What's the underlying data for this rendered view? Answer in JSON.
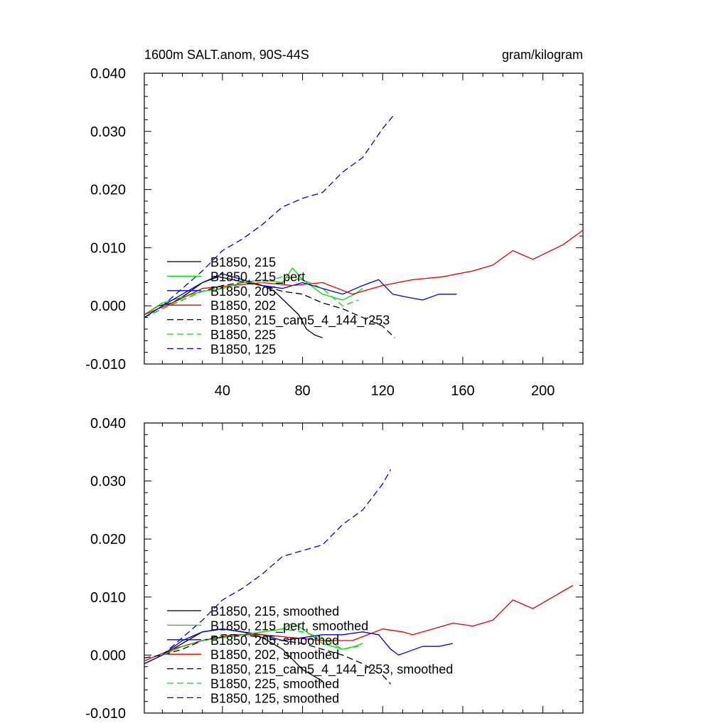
{
  "colors": {
    "black": "#000000",
    "green": "#00e000",
    "blue": "#0000e0",
    "red": "#e00000"
  },
  "chart_data": [
    {
      "type": "line",
      "title": "1600m SALT.anom, 90S-44S",
      "units": "gram/kilogram",
      "xlim": [
        1,
        220
      ],
      "ylim": [
        -0.01,
        0.04
      ],
      "xticks": [
        40,
        80,
        120,
        160,
        200
      ],
      "xticklabels": [
        "40",
        "80",
        "120",
        "160",
        "200"
      ],
      "yticks": [
        -0.01,
        0.0,
        0.01,
        0.02,
        0.03,
        0.04
      ],
      "yticklabels": [
        "-0.010",
        "0.000",
        "0.010",
        "0.020",
        "0.030",
        "0.040"
      ],
      "series": [
        {
          "name": "B1850, 215",
          "color": "black",
          "dash": false,
          "x": [
            1,
            8,
            15,
            22,
            30,
            38,
            45,
            52,
            60,
            66,
            72,
            78,
            82,
            86,
            90
          ],
          "y": [
            -0.0015,
            0.0,
            0.0005,
            0.002,
            0.004,
            0.005,
            0.0045,
            0.004,
            0.0035,
            0.0025,
            0.0005,
            -0.0015,
            -0.004,
            -0.005,
            -0.0055
          ]
        },
        {
          "name": "B1850, 215_pert",
          "color": "green",
          "dash": false,
          "x": [
            1,
            10,
            20,
            30,
            40,
            50,
            60,
            70,
            75,
            80,
            90,
            100,
            106,
            110
          ],
          "y": [
            -0.0015,
            0.0005,
            0.0015,
            0.0025,
            0.003,
            0.004,
            0.0045,
            0.004,
            0.0065,
            0.0045,
            0.002,
            0.001,
            0.002,
            0.003
          ]
        },
        {
          "name": "B1850, 205",
          "color": "blue",
          "dash": false,
          "x": [
            1,
            10,
            20,
            30,
            40,
            50,
            60,
            70,
            80,
            90,
            100,
            110,
            118,
            125,
            132,
            140,
            148,
            157
          ],
          "y": [
            -0.002,
            0.0,
            0.002,
            0.004,
            0.0055,
            0.0045,
            0.0035,
            0.003,
            0.004,
            0.003,
            0.002,
            0.0035,
            0.0045,
            0.002,
            0.0015,
            0.001,
            0.002,
            0.002
          ]
        },
        {
          "name": "B1850, 202",
          "color": "red",
          "dash": false,
          "x": [
            1,
            15,
            30,
            45,
            60,
            75,
            90,
            105,
            120,
            135,
            150,
            165,
            175,
            185,
            195,
            210,
            220
          ],
          "y": [
            -0.0015,
            0.0005,
            0.003,
            0.0035,
            0.004,
            0.0035,
            0.004,
            0.002,
            0.0035,
            0.0045,
            0.005,
            0.006,
            0.007,
            0.0095,
            0.008,
            0.0105,
            0.013
          ]
        },
        {
          "name": "B1850, 215_cam5_4_144_r253",
          "color": "black",
          "dash": true,
          "x": [
            1,
            10,
            20,
            30,
            40,
            50,
            60,
            70,
            80,
            90,
            100,
            110,
            120,
            126
          ],
          "y": [
            -0.002,
            -0.0005,
            0.001,
            0.0025,
            0.0035,
            0.004,
            0.0035,
            0.0025,
            0.002,
            0.0005,
            -0.0005,
            -0.002,
            -0.0035,
            -0.0055
          ]
        },
        {
          "name": "B1850, 225",
          "color": "green",
          "dash": true,
          "x": [
            1,
            10,
            20,
            30,
            40,
            50,
            60,
            70,
            80,
            90,
            100,
            108
          ],
          "y": [
            -0.002,
            -0.0005,
            0.001,
            0.0025,
            0.003,
            0.004,
            0.004,
            0.005,
            0.0045,
            0.003,
            0.0,
            0.001
          ]
        },
        {
          "name": "B1850, 125",
          "color": "blue",
          "dash": true,
          "x": [
            1,
            10,
            20,
            30,
            40,
            50,
            60,
            70,
            80,
            90,
            100,
            110,
            120,
            126
          ],
          "y": [
            -0.002,
            0.0,
            0.003,
            0.006,
            0.0095,
            0.0115,
            0.014,
            0.017,
            0.0185,
            0.0195,
            0.023,
            0.0255,
            0.0305,
            0.033
          ]
        }
      ]
    },
    {
      "type": "line",
      "title": "",
      "units": "",
      "xlim": [
        1,
        220
      ],
      "ylim": [
        -0.01,
        0.04
      ],
      "xticks": [
        40,
        80,
        120,
        160,
        200
      ],
      "xticklabels": [],
      "yticks": [
        -0.01,
        0.0,
        0.01,
        0.02,
        0.03,
        0.04
      ],
      "yticklabels": [
        "-0.010",
        "0.000",
        "0.010",
        "0.020",
        "0.030",
        "0.040"
      ],
      "series": [
        {
          "name": "B1850, 215, smoothed",
          "color": "black",
          "dash": false,
          "x": [
            1,
            10,
            20,
            30,
            40,
            50,
            60,
            70,
            80,
            90
          ],
          "y": [
            -0.0015,
            0.0,
            0.002,
            0.004,
            0.0045,
            0.004,
            0.003,
            0.001,
            -0.0025,
            -0.0045
          ]
        },
        {
          "name": "B1850, 215_pert, smoothed",
          "color": "green",
          "dash": false,
          "x": [
            1,
            10,
            20,
            30,
            40,
            50,
            60,
            70,
            75,
            80,
            90,
            100,
            106,
            110
          ],
          "y": [
            -0.0015,
            0.0,
            0.0015,
            0.0025,
            0.003,
            0.0035,
            0.004,
            0.0045,
            0.0055,
            0.0045,
            0.002,
            0.001,
            0.0015,
            0.002
          ]
        },
        {
          "name": "B1850, 205, smoothed",
          "color": "blue",
          "dash": false,
          "x": [
            1,
            10,
            20,
            30,
            40,
            50,
            60,
            70,
            80,
            90,
            100,
            110,
            118,
            124,
            128,
            132,
            140,
            148,
            155
          ],
          "y": [
            -0.0015,
            0.0,
            0.0025,
            0.004,
            0.0045,
            0.004,
            0.0035,
            0.0025,
            0.003,
            0.0035,
            0.0035,
            0.004,
            0.0035,
            0.001,
            0.0,
            0.0005,
            0.0015,
            0.0015,
            0.002
          ]
        },
        {
          "name": "B1850, 202, smoothed",
          "color": "red",
          "dash": false,
          "x": [
            1,
            15,
            30,
            45,
            60,
            75,
            90,
            105,
            120,
            130,
            135,
            145,
            155,
            165,
            175,
            185,
            195,
            205,
            215
          ],
          "y": [
            -0.001,
            0.001,
            0.0025,
            0.0035,
            0.0035,
            0.003,
            0.0025,
            0.0025,
            0.0045,
            0.004,
            0.0035,
            0.0045,
            0.0055,
            0.005,
            0.006,
            0.0095,
            0.008,
            0.01,
            0.012
          ]
        },
        {
          "name": "B1850, 215_cam5_4_144_r253, smoothed",
          "color": "black",
          "dash": true,
          "x": [
            1,
            10,
            20,
            30,
            40,
            50,
            60,
            70,
            80,
            90,
            100,
            110,
            120,
            124
          ],
          "y": [
            -0.0005,
            0.0,
            0.001,
            0.0025,
            0.0035,
            0.0035,
            0.003,
            0.0025,
            0.002,
            0.001,
            0.0,
            -0.0015,
            -0.0035,
            -0.005
          ]
        },
        {
          "name": "B1850, 225, smoothed",
          "color": "green",
          "dash": true,
          "x": [
            1,
            10,
            20,
            30,
            40,
            50,
            60,
            70,
            80,
            90,
            100,
            108
          ],
          "y": [
            -0.0015,
            0.0,
            0.0015,
            0.0025,
            0.003,
            0.0035,
            0.004,
            0.0045,
            0.004,
            0.003,
            0.001,
            0.0015
          ]
        },
        {
          "name": "B1850, 125, smoothed",
          "color": "blue",
          "dash": true,
          "x": [
            1,
            10,
            20,
            30,
            40,
            50,
            60,
            70,
            80,
            90,
            100,
            110,
            120,
            124
          ],
          "y": [
            -0.0015,
            0.0,
            0.003,
            0.006,
            0.0095,
            0.0115,
            0.014,
            0.017,
            0.018,
            0.019,
            0.0225,
            0.025,
            0.0295,
            0.032
          ]
        }
      ]
    }
  ]
}
